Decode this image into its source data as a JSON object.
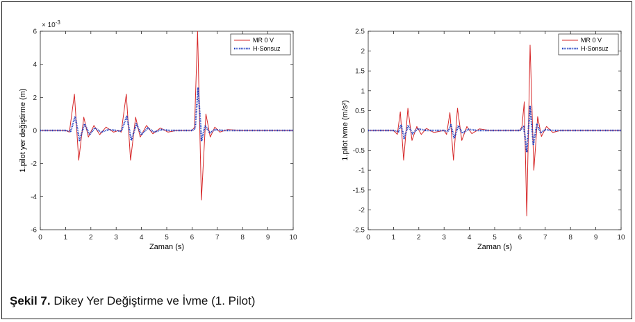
{
  "caption": {
    "label": "Şekil 7.",
    "text": "Dikey Yer Değiştirme ve İvme (1. Pilot)"
  },
  "chart_data": [
    {
      "type": "line",
      "xlabel": "Zaman (s)",
      "ylabel": "1.pilot yer değiştirme (m)",
      "xlim": [
        0,
        10
      ],
      "ylim": [
        -6,
        6
      ],
      "xticks": [
        "0",
        "1",
        "2",
        "3",
        "4",
        "5",
        "6",
        "7",
        "8",
        "9",
        "10"
      ],
      "yticks": [
        "-6",
        "-4",
        "-2",
        "0",
        "2",
        "4",
        "6"
      ],
      "ytick_values": [
        -6,
        -4,
        -2,
        0,
        2,
        4,
        6
      ],
      "exponent_label": "× 10",
      "exponent_power": "-3",
      "legend": {
        "position": "top-right"
      },
      "series": [
        {
          "name": "MR 0 V",
          "color": "#d62728",
          "style": "solid",
          "points": [
            [
              0,
              0
            ],
            [
              1.0,
              0
            ],
            [
              1.15,
              -0.1
            ],
            [
              1.35,
              2.2
            ],
            [
              1.52,
              -1.8
            ],
            [
              1.72,
              0.8
            ],
            [
              1.9,
              -0.4
            ],
            [
              2.12,
              0.3
            ],
            [
              2.35,
              -0.25
            ],
            [
              2.6,
              0.2
            ],
            [
              2.9,
              -0.1
            ],
            [
              3.1,
              0
            ],
            [
              3.2,
              -0.1
            ],
            [
              3.4,
              2.2
            ],
            [
              3.57,
              -1.8
            ],
            [
              3.77,
              0.8
            ],
            [
              3.95,
              -0.4
            ],
            [
              4.2,
              0.3
            ],
            [
              4.45,
              -0.2
            ],
            [
              4.75,
              0.15
            ],
            [
              5.05,
              -0.1
            ],
            [
              5.4,
              0
            ],
            [
              6.0,
              0
            ],
            [
              6.1,
              0.2
            ],
            [
              6.22,
              6.0
            ],
            [
              6.37,
              -4.2
            ],
            [
              6.55,
              1.0
            ],
            [
              6.72,
              -0.4
            ],
            [
              6.9,
              0.2
            ],
            [
              7.1,
              -0.1
            ],
            [
              7.4,
              0.05
            ],
            [
              8.0,
              0
            ],
            [
              10,
              0
            ]
          ]
        },
        {
          "name": "H-Sonsuz",
          "color": "#1f3fc0",
          "style": "dotted",
          "points": [
            [
              0,
              0
            ],
            [
              1.0,
              0
            ],
            [
              1.2,
              -0.05
            ],
            [
              1.38,
              0.85
            ],
            [
              1.55,
              -0.6
            ],
            [
              1.75,
              0.4
            ],
            [
              1.95,
              -0.25
            ],
            [
              2.15,
              0.15
            ],
            [
              2.4,
              -0.1
            ],
            [
              2.7,
              0.05
            ],
            [
              3.0,
              0
            ],
            [
              3.2,
              -0.05
            ],
            [
              3.42,
              0.85
            ],
            [
              3.6,
              -0.6
            ],
            [
              3.8,
              0.4
            ],
            [
              4.0,
              -0.25
            ],
            [
              4.25,
              0.15
            ],
            [
              4.5,
              -0.1
            ],
            [
              4.8,
              0.05
            ],
            [
              5.1,
              0
            ],
            [
              6.0,
              0
            ],
            [
              6.12,
              0.1
            ],
            [
              6.24,
              2.55
            ],
            [
              6.38,
              -0.6
            ],
            [
              6.52,
              0.3
            ],
            [
              6.7,
              -0.15
            ],
            [
              6.9,
              0.05
            ],
            [
              7.2,
              0
            ],
            [
              10,
              0
            ]
          ]
        }
      ]
    },
    {
      "type": "line",
      "xlabel": "Zaman (s)",
      "ylabel": "1.pilot ivme (m/s²)",
      "xlim": [
        0,
        10
      ],
      "ylim": [
        -2.5,
        2.5
      ],
      "xticks": [
        "0",
        "1",
        "2",
        "3",
        "4",
        "5",
        "6",
        "7",
        "8",
        "9",
        "10"
      ],
      "yticks": [
        "-2.5",
        "-2",
        "-1.5",
        "-1",
        "-0.5",
        "0",
        "0.5",
        "1",
        "1.5",
        "2",
        "2.5"
      ],
      "ytick_values": [
        -2.5,
        -2,
        -1.5,
        -1,
        -0.5,
        0,
        0.5,
        1,
        1.5,
        2,
        2.5
      ],
      "legend": {
        "position": "top-right"
      },
      "series": [
        {
          "name": "MR 0 V",
          "color": "#d62728",
          "style": "solid",
          "points": [
            [
              0,
              0
            ],
            [
              1.0,
              0
            ],
            [
              1.15,
              -0.1
            ],
            [
              1.27,
              0.47
            ],
            [
              1.4,
              -0.75
            ],
            [
              1.57,
              0.56
            ],
            [
              1.73,
              -0.25
            ],
            [
              1.92,
              0.1
            ],
            [
              2.1,
              -0.1
            ],
            [
              2.3,
              0.05
            ],
            [
              2.6,
              -0.05
            ],
            [
              3.0,
              0
            ],
            [
              3.1,
              -0.1
            ],
            [
              3.23,
              0.45
            ],
            [
              3.37,
              -0.75
            ],
            [
              3.53,
              0.56
            ],
            [
              3.7,
              -0.25
            ],
            [
              3.9,
              0.1
            ],
            [
              4.1,
              -0.08
            ],
            [
              4.4,
              0.04
            ],
            [
              4.8,
              0
            ],
            [
              6.0,
              0
            ],
            [
              6.08,
              0.1
            ],
            [
              6.17,
              0.72
            ],
            [
              6.27,
              -2.15
            ],
            [
              6.4,
              2.15
            ],
            [
              6.55,
              -1.0
            ],
            [
              6.7,
              0.35
            ],
            [
              6.85,
              -0.15
            ],
            [
              7.05,
              0.1
            ],
            [
              7.3,
              -0.05
            ],
            [
              7.6,
              0
            ],
            [
              10,
              0
            ]
          ]
        },
        {
          "name": "H-Sonsuz",
          "color": "#1f3fc0",
          "style": "dotted",
          "points": [
            [
              0,
              0
            ],
            [
              1.0,
              0
            ],
            [
              1.2,
              -0.03
            ],
            [
              1.3,
              0.15
            ],
            [
              1.42,
              -0.2
            ],
            [
              1.58,
              0.13
            ],
            [
              1.75,
              -0.08
            ],
            [
              1.95,
              0.04
            ],
            [
              2.3,
              0
            ],
            [
              3.0,
              0
            ],
            [
              3.15,
              -0.03
            ],
            [
              3.27,
              0.14
            ],
            [
              3.4,
              -0.2
            ],
            [
              3.56,
              0.12
            ],
            [
              3.72,
              -0.07
            ],
            [
              3.95,
              0.03
            ],
            [
              4.3,
              0
            ],
            [
              6.0,
              0
            ],
            [
              6.15,
              0.1
            ],
            [
              6.27,
              -0.55
            ],
            [
              6.4,
              0.6
            ],
            [
              6.53,
              -0.35
            ],
            [
              6.67,
              0.15
            ],
            [
              6.82,
              -0.06
            ],
            [
              7.0,
              0.02
            ],
            [
              7.3,
              0
            ],
            [
              10,
              0
            ]
          ]
        }
      ]
    }
  ]
}
